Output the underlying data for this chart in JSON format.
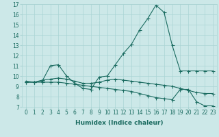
{
  "xlabel": "Humidex (Indice chaleur)",
  "bg_color": "#cce8e8",
  "grid_color": "#aad4d4",
  "line_color": "#1a6b60",
  "xlim": [
    -0.5,
    23.5
  ],
  "ylim": [
    7,
    17
  ],
  "xticks": [
    0,
    1,
    2,
    3,
    4,
    5,
    6,
    7,
    8,
    9,
    10,
    11,
    12,
    13,
    14,
    15,
    16,
    17,
    18,
    19,
    20,
    21,
    22,
    23
  ],
  "yticks": [
    7,
    8,
    9,
    10,
    11,
    12,
    13,
    14,
    15,
    16,
    17
  ],
  "line1_x": [
    0,
    1,
    2,
    3,
    4,
    5,
    6,
    7,
    8,
    9,
    10,
    11,
    12,
    13,
    14,
    15,
    16,
    17,
    18,
    19,
    20,
    21,
    22,
    23
  ],
  "line1_y": [
    9.5,
    9.4,
    9.5,
    11.0,
    11.1,
    10.0,
    9.3,
    8.8,
    8.7,
    9.9,
    10.0,
    11.1,
    12.2,
    13.1,
    14.5,
    15.6,
    16.9,
    16.2,
    13.0,
    10.5,
    10.5,
    10.5,
    10.5,
    10.5
  ],
  "line2_x": [
    0,
    1,
    2,
    3,
    4,
    5,
    6,
    7,
    8,
    9,
    10,
    11,
    12,
    13,
    14,
    15,
    16,
    17,
    18,
    19,
    20,
    21,
    22,
    23
  ],
  "line2_y": [
    9.4,
    9.4,
    9.6,
    9.7,
    9.8,
    9.7,
    9.5,
    9.3,
    9.3,
    9.4,
    9.6,
    9.7,
    9.6,
    9.5,
    9.4,
    9.3,
    9.2,
    9.1,
    9.0,
    8.8,
    8.6,
    8.4,
    8.3,
    8.3
  ],
  "line3_x": [
    0,
    1,
    2,
    3,
    4,
    5,
    6,
    7,
    8,
    9,
    10,
    11,
    12,
    13,
    14,
    15,
    16,
    17,
    18,
    19,
    20,
    21,
    22,
    23
  ],
  "line3_y": [
    9.4,
    9.4,
    9.4,
    9.4,
    9.4,
    9.3,
    9.2,
    9.1,
    9.0,
    8.9,
    8.8,
    8.7,
    8.6,
    8.5,
    8.3,
    8.1,
    7.9,
    7.8,
    7.7,
    8.7,
    8.7,
    7.5,
    7.1,
    7.1
  ],
  "tick_fontsize": 5.5,
  "xlabel_fontsize": 6.5
}
